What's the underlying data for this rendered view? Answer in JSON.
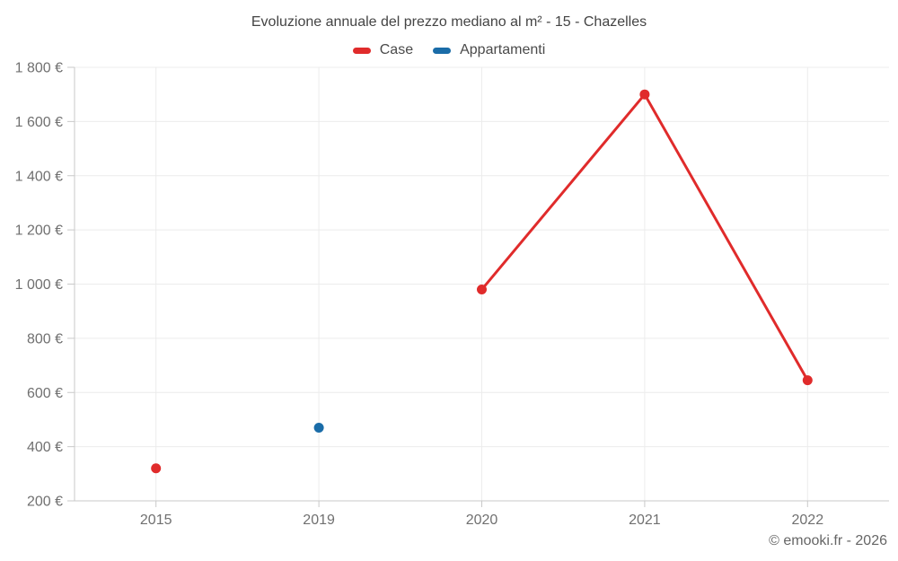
{
  "chart_data": {
    "type": "line",
    "title": "Evoluzione annuale del prezzo mediano al m² - 15 - Chazelles",
    "unit": "€ / m²",
    "categories": [
      "2015",
      "2019",
      "2020",
      "2021",
      "2022"
    ],
    "series": [
      {
        "id": "case",
        "name": "Case",
        "color": "#e02b2b",
        "values": [
          320,
          null,
          980,
          1700,
          645
        ]
      },
      {
        "id": "appartamenti",
        "name": "Appartamenti",
        "color": "#1a6ca8",
        "values": [
          null,
          470,
          null,
          null,
          null
        ]
      }
    ],
    "ylim": [
      200,
      1800
    ],
    "yticks": [
      200,
      400,
      600,
      800,
      1000,
      1200,
      1400,
      1600,
      1800
    ],
    "ytick_labels": [
      "200 €",
      "400 €",
      "600 €",
      "800 €",
      "1 000 €",
      "1 200 €",
      "1 400 €",
      "1 600 €",
      "1 800 €"
    ],
    "grid": true,
    "legend_position": "top",
    "colors": {
      "grid": "#ececec",
      "axis": "#c9c9c9"
    }
  },
  "footer": {
    "copyright": "© emooki.fr - 2026"
  }
}
